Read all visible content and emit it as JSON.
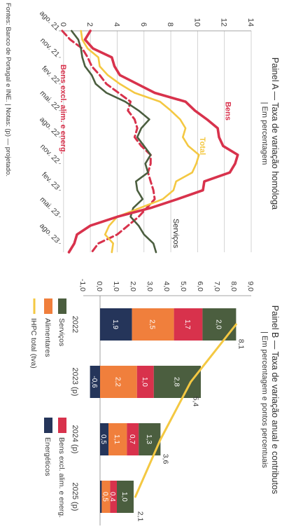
{
  "footnote": "Fontes: Banco de Portugal e INE. | Notas: (p) — projetado.",
  "colors": {
    "bens": "#d8324c",
    "total": "#f4c842",
    "servicos": "#4b5e3f",
    "bens_excl": "#d8324c",
    "alimentares": "#f07f3c",
    "energeticos": "#25355a",
    "bens_excl_bar": "#d8324c",
    "grid": "#c8c8c8",
    "text": "#3a3a3a"
  },
  "panel_a": {
    "title": "Painel A — Taxa de variação homóloga",
    "subtitle": "| Em percentagem",
    "series_labels": {
      "bens": "Bens",
      "total": "Total",
      "servicos": "Serviços",
      "bens_excl": "Bens excl. alim. e energ."
    },
    "chart_data": {
      "type": "line",
      "x": [
        "ago. 21",
        "set. 21",
        "out. 21",
        "nov. 21",
        "dez. 21",
        "jan. 22",
        "fev. 22",
        "mar. 22",
        "abr. 22",
        "mai. 22",
        "jun. 22",
        "jul. 22",
        "ago. 22",
        "set. 22",
        "out. 22",
        "nov. 22",
        "dez. 22",
        "jan. 23",
        "fev. 23",
        "mar. 23",
        "abr. 23",
        "mai. 23",
        "jun. 23",
        "jul. 23",
        "ago. 23",
        "set. 23"
      ],
      "x_tick_labels": [
        "ago. 21",
        "nov. 21",
        "fev. 22",
        "mai. 22",
        "ago. 22",
        "nov. 22",
        "fev. 23",
        "mai. 23",
        "ago. 23"
      ],
      "ylim": [
        -0.2,
        14
      ],
      "y_ticks": [
        0,
        2,
        4,
        6,
        8,
        10,
        12,
        14
      ],
      "series": [
        {
          "key": "bens",
          "name": "Bens",
          "values": [
            2.0,
            1.6,
            2.2,
            3.6,
            3.8,
            4.2,
            5.5,
            6.8,
            9.1,
            9.8,
            10.7,
            11.5,
            11.6,
            11.9,
            13.0,
            12.8,
            12.4,
            10.5,
            10.4,
            8.5,
            6.5,
            4.0,
            2.0,
            1.0,
            0.8,
            0.4
          ]
        },
        {
          "key": "total",
          "name": "Total",
          "values": [
            1.3,
            1.4,
            1.8,
            2.6,
            2.7,
            3.3,
            4.2,
            5.3,
            7.2,
            8.0,
            8.7,
            9.1,
            8.9,
            9.3,
            10.1,
            9.9,
            9.6,
            8.4,
            8.2,
            7.4,
            5.7,
            4.0,
            3.4,
            3.1,
            3.7,
            3.6
          ]
        },
        {
          "key": "servicos",
          "name": "Serviços",
          "values": [
            0.6,
            1.1,
            1.3,
            1.4,
            1.6,
            2.1,
            2.4,
            3.2,
            4.6,
            5.6,
            6.4,
            5.8,
            5.5,
            6.0,
            6.5,
            6.1,
            6.3,
            5.4,
            5.5,
            5.9,
            5.2,
            5.0,
            5.6,
            6.0,
            6.7,
            6.9
          ]
        },
        {
          "key": "bens_excl",
          "name": "Bens excl. alim. e energ.",
          "values": [
            -0.1,
            0.5,
            1.4,
            1.8,
            2.1,
            2.7,
            3.2,
            4.1,
            5.0,
            4.8,
            5.3,
            5.5,
            5.3,
            5.8,
            6.5,
            6.5,
            6.3,
            6.5,
            6.7,
            6.8,
            6.2,
            5.6,
            4.8,
            4.0,
            2.6,
            2.1
          ]
        }
      ]
    }
  },
  "panel_b": {
    "title": "Painel B — Taxa de variação anual e contributos",
    "subtitle": "| Em percentagem e pontos percentuais",
    "legend": [
      {
        "key": "servicos",
        "label": "Serviços"
      },
      {
        "key": "bens_excl_bar",
        "label": "Bens excl. alim. e energ."
      },
      {
        "key": "alimentares",
        "label": "Alimentares"
      },
      {
        "key": "energeticos",
        "label": "Energéticos"
      },
      {
        "key": "total_line",
        "label": "IHPC total (tva)"
      }
    ],
    "chart_data": {
      "type": "bar",
      "categories": [
        "2022",
        "2023 (p)",
        "2024 (p)",
        "2025 (p)"
      ],
      "ylim": [
        -1.0,
        9.0
      ],
      "y_ticks": [
        "-1,0",
        "0,0",
        "1,0",
        "2,0",
        "3,0",
        "4,0",
        "5,0",
        "6,0",
        "7,0",
        "8,0",
        "9,0"
      ],
      "series": [
        {
          "key": "energeticos",
          "name": "Energéticos",
          "values": [
            1.9,
            -0.6,
            0.5,
            0.1
          ],
          "labels": [
            "1,9",
            "-0,6",
            "0,5",
            ""
          ]
        },
        {
          "key": "alimentares",
          "name": "Alimentares",
          "values": [
            2.5,
            2.2,
            1.1,
            0.5
          ],
          "labels": [
            "2,5",
            "2,2",
            "1,1",
            "0,5"
          ]
        },
        {
          "key": "bens_excl_bar",
          "name": "Bens excl. alim. e energ.",
          "values": [
            1.7,
            1.0,
            0.7,
            0.4
          ],
          "labels": [
            "1,7",
            "1,0",
            "0,7",
            "0,4"
          ]
        },
        {
          "key": "servicos",
          "name": "Serviços",
          "values": [
            2.0,
            2.8,
            1.3,
            1.0
          ],
          "labels": [
            "2,0",
            "2,8",
            "1,3",
            "1,0"
          ]
        }
      ],
      "total": {
        "name": "IHPC total (tva)",
        "values": [
          8.1,
          5.4,
          3.6,
          2.1
        ],
        "labels": [
          "8,1",
          "5,4",
          "3,6",
          "2,1"
        ]
      }
    }
  }
}
